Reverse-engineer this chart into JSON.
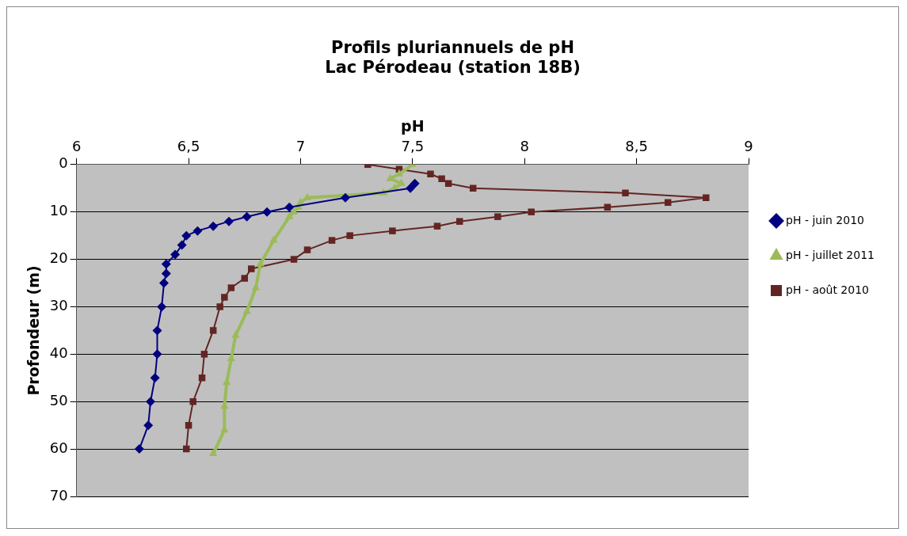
{
  "chart_data": {
    "type": "line",
    "title": "Profils pluriannuels de pH\nLac Pérodeau (station 18B)",
    "xlabel": "pH",
    "ylabel": "Profondeur (m)",
    "xlim": [
      6,
      9
    ],
    "xticks": [
      6,
      {
        "value": 6.5,
        "label": "6,5"
      },
      7,
      {
        "value": 7.5,
        "label": "7,5"
      },
      8,
      {
        "value": 8.5,
        "label": "8,5"
      },
      9
    ],
    "ylim": [
      70,
      0
    ],
    "yticks": [
      0,
      10,
      20,
      30,
      40,
      50,
      60,
      70
    ],
    "grid": "y",
    "legend": "right",
    "line_style": "solid",
    "series": [
      {
        "name": "pH - juin 2010",
        "color": "#000080",
        "marker": "diamond",
        "x": [
          7.51,
          7.49,
          7.2,
          6.95,
          6.85,
          6.76,
          6.68,
          6.61,
          6.54,
          6.49,
          6.47,
          6.44,
          6.4,
          6.4,
          6.39,
          6.38,
          6.36,
          6.36,
          6.35,
          6.33,
          6.32,
          6.28
        ],
        "values": [
          4,
          5,
          7,
          9,
          10,
          11,
          12,
          13,
          14,
          15,
          17,
          19,
          21,
          23,
          25,
          30,
          35,
          40,
          45,
          50,
          55,
          60
        ]
      },
      {
        "name": "pH - juillet 2011",
        "color": "#9bbb59",
        "marker": "triangle",
        "x": [
          7.5,
          7.44,
          7.4,
          7.45,
          7.42,
          7.37,
          7.03,
          7.0,
          6.99,
          6.97,
          6.95,
          6.88,
          6.82,
          6.8,
          6.76,
          6.71,
          6.69,
          6.67,
          6.66,
          6.66,
          6.61
        ],
        "values": [
          0,
          2,
          3,
          4,
          5,
          6,
          7,
          8,
          9,
          10,
          11,
          16,
          21,
          26,
          31,
          36,
          41,
          46,
          51,
          56,
          61
        ]
      },
      {
        "name": "pH - août 2010",
        "color": "#632523",
        "marker": "square",
        "x": [
          7.3,
          7.44,
          7.58,
          7.63,
          7.66,
          7.77,
          8.45,
          8.81,
          8.64,
          8.37,
          8.03,
          7.88,
          7.71,
          7.61,
          7.41,
          7.22,
          7.14,
          7.03,
          6.97,
          6.78,
          6.75,
          6.69,
          6.66,
          6.64,
          6.61,
          6.57,
          6.56,
          6.52,
          6.5,
          6.49
        ],
        "values": [
          0,
          1,
          2,
          3,
          4,
          5,
          6,
          7,
          8,
          9,
          10,
          11,
          12,
          13,
          14,
          15,
          16,
          18,
          20,
          22,
          24,
          26,
          28,
          30,
          35,
          40,
          45,
          50,
          55,
          60
        ]
      }
    ]
  }
}
